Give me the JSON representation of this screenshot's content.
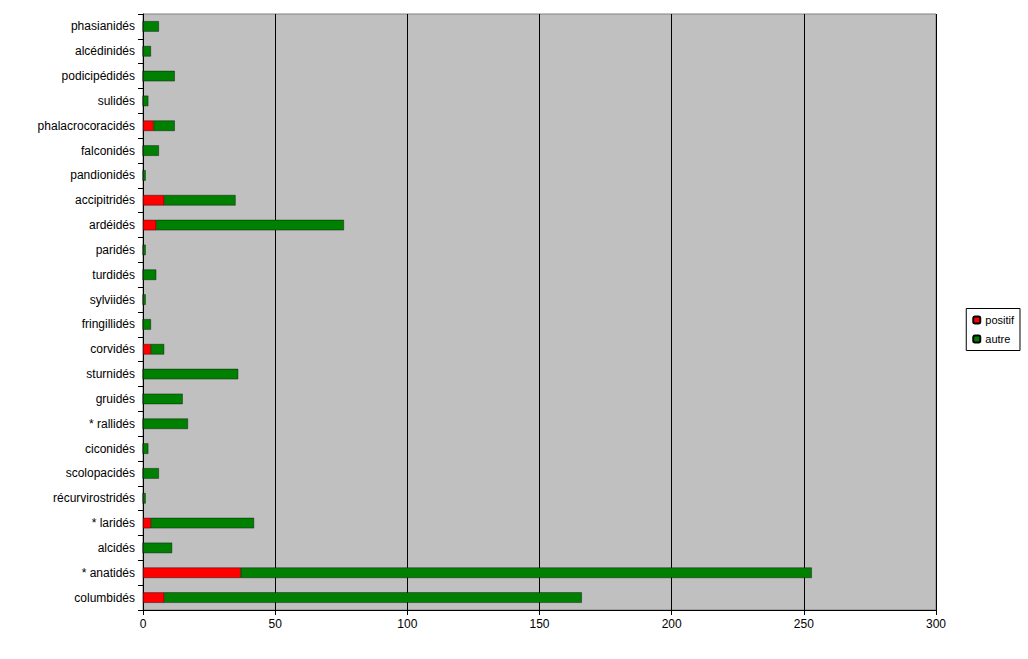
{
  "chart_data": {
    "type": "bar",
    "orientation": "horizontal",
    "stacked": true,
    "grid": true,
    "legend": "right",
    "categories": [
      "columbidés",
      "* anatidés",
      "alcidés",
      "* laridés",
      "récurvirostridés",
      "scolopacidés",
      "ciconidés",
      "* rallidés",
      "gruidés",
      "sturnidés",
      "corvidés",
      "fringillidés",
      "sylviidés",
      "turdidés",
      "paridés",
      "ardéidés",
      "accipitridés",
      "pandionidés",
      "falconidés",
      "phalacrocoracidés",
      "sulidés",
      "podicipédidés",
      "alcédinidés",
      "phasianidés"
    ],
    "series": [
      {
        "name": "positif",
        "color": "#ff0000",
        "values": [
          8,
          37,
          0,
          3,
          0,
          0,
          0,
          0,
          0,
          0,
          3,
          0,
          0,
          0,
          0,
          5,
          8,
          0,
          0,
          4,
          0,
          0,
          0,
          0
        ]
      },
      {
        "name": "autre",
        "color": "#008000",
        "values": [
          158,
          216,
          11,
          39,
          1,
          6,
          2,
          17,
          15,
          36,
          5,
          3,
          1,
          5,
          1,
          71,
          27,
          1,
          6,
          8,
          2,
          12,
          3,
          6
        ]
      }
    ],
    "xlim": [
      0,
      300
    ],
    "xticks": [
      0,
      50,
      100,
      150,
      200,
      250,
      300
    ]
  }
}
